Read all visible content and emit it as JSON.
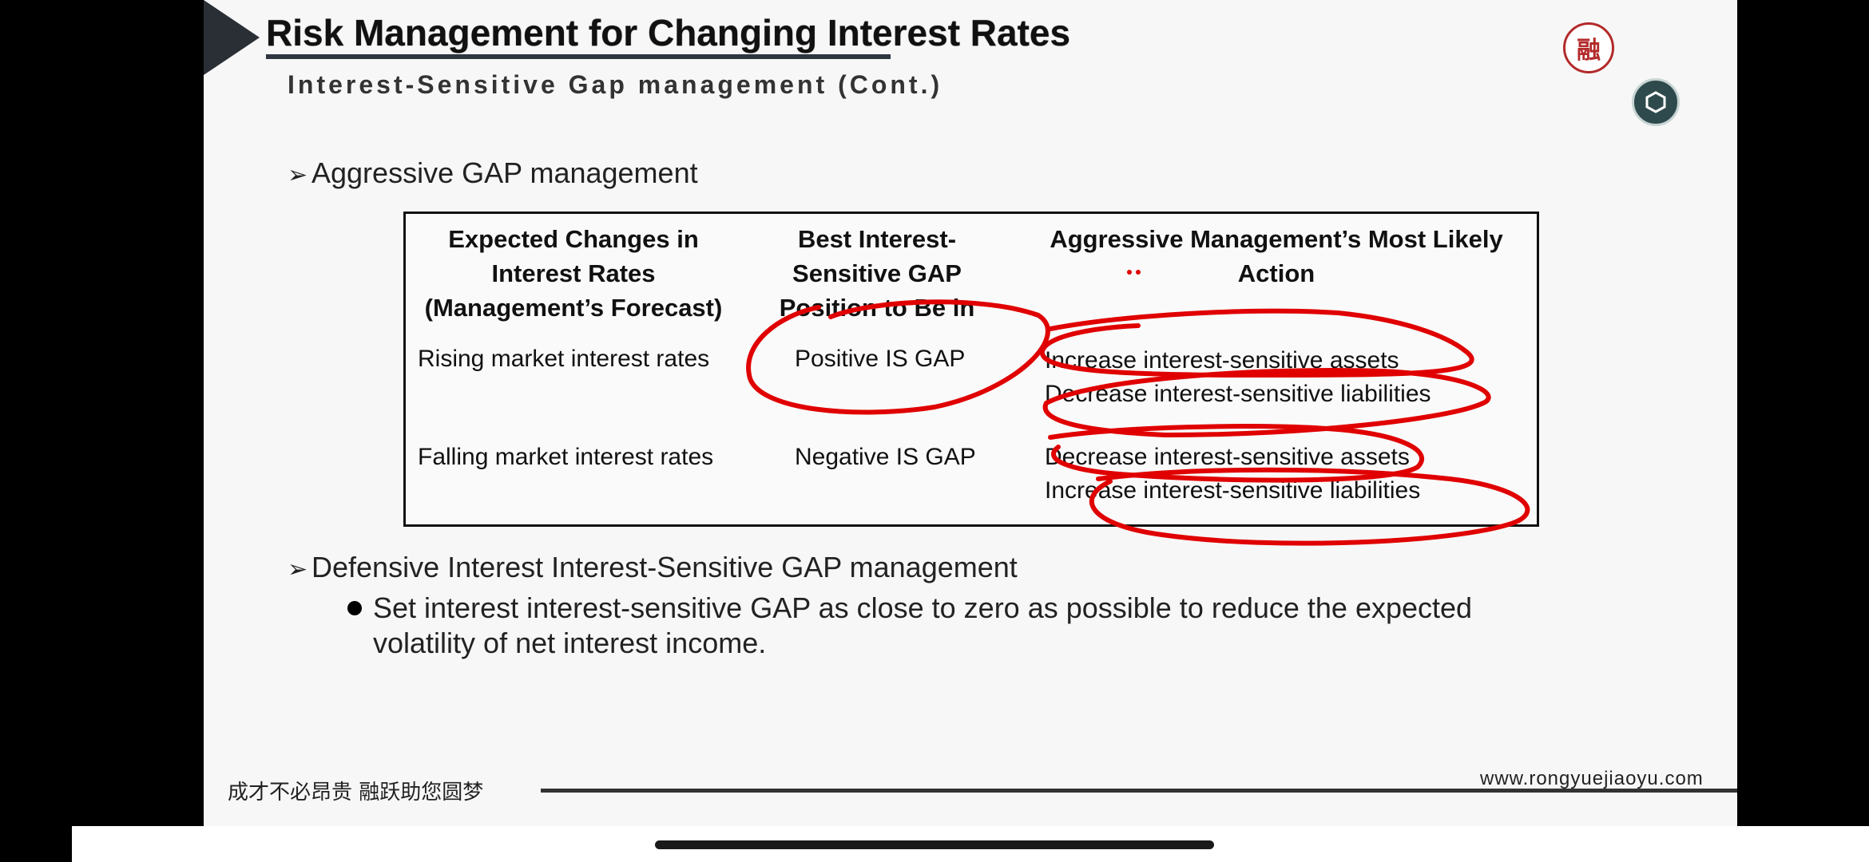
{
  "slide": {
    "title": "Risk Management for Changing Interest Rates",
    "subtitle": "Interest-Sensitive Gap management (Cont.)",
    "logo_text": "融",
    "bullet1": "Aggressive GAP management",
    "bullet2": "Defensive Interest Interest-Sensitive GAP management",
    "sub_bullet": "Set interest interest-sensitive GAP as close to zero as possible to reduce the expected volatility of net interest income."
  },
  "table": {
    "headers": [
      [
        "Expected Changes in",
        "Interest Rates",
        "(Management’s Forecast)"
      ],
      [
        "Best Interest-",
        "Sensitive GAP",
        "Position to Be in"
      ],
      [
        "Aggressive Management’s Most Likely",
        "Action"
      ]
    ],
    "rows": [
      {
        "forecast": "Rising market interest rates",
        "position": "Positive IS GAP",
        "actions": [
          "Increase interest-sensitive assets",
          "Decrease interest-sensitive liabilities"
        ]
      },
      {
        "forecast": "Falling market interest rates",
        "position": "Negative IS GAP",
        "actions": [
          "Decrease interest-sensitive assets",
          "Increase interest-sensitive liabilities"
        ]
      }
    ]
  },
  "footer": {
    "slogan": "成才不必昂贵  融跃助您圆梦",
    "url": "www.rongyuejiaoyu.com"
  },
  "annotation_color": "#e00000",
  "icons": {
    "control": "hexagon-icon",
    "logo": "logo-seal"
  }
}
